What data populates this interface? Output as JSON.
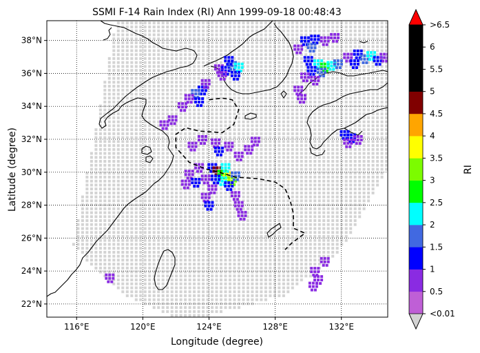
{
  "chart_data": {
    "type": "heatmap",
    "title": "SSMI F-14 Rain Index (RI) Ann 1999-09-18 00:48:43",
    "xlabel": "Longitude (degree)",
    "ylabel": "Latitude (degree)",
    "xlim": [
      114.2,
      134.8
    ],
    "ylim": [
      21.2,
      39.2
    ],
    "xticks": [
      116,
      120,
      124,
      128,
      132
    ],
    "xtick_labels": [
      "116°E",
      "120°E",
      "124°E",
      "128°E",
      "132°E"
    ],
    "yticks": [
      22,
      24,
      26,
      28,
      30,
      32,
      34,
      36,
      38
    ],
    "ytick_labels": [
      "22°N",
      "24°N",
      "26°N",
      "28°N",
      "30°N",
      "32°N",
      "34°N",
      "36°N",
      "38°N"
    ],
    "grid": true,
    "grid_style": "dotted",
    "colorbar": {
      "label": "RI",
      "tick_labels": [
        "<0.01",
        "0.5",
        "1",
        "1.5",
        "2",
        "2.5",
        "3",
        "3.5",
        "4",
        "4.5",
        "5",
        "5.5",
        "6",
        ">6.5"
      ],
      "under_color": "#d3d3d3",
      "over_color": "#ff0000",
      "colors": [
        "#bf5fd6",
        "#8a2be2",
        "#0000ff",
        "#4169e1",
        "#00ffff",
        "#00ff00",
        "#7cfc00",
        "#ffff00",
        "#ffa500",
        "#800000",
        "#000000",
        "#000000",
        "#000000"
      ]
    },
    "swath_color": "#d3d3d3",
    "swath_polygon": [
      [
        118.4,
        39.2
      ],
      [
        134.8,
        39.2
      ],
      [
        134.8,
        30.2
      ],
      [
        131.8,
        25.0
      ],
      [
        128.6,
        22.5
      ],
      [
        124.0,
        21.3
      ],
      [
        121.5,
        21.3
      ],
      [
        118.8,
        22.6
      ],
      [
        117.0,
        24.2
      ],
      [
        115.8,
        25.6
      ]
    ],
    "rain_cells": [
      {
        "lon": 124.6,
        "lat": 36.3,
        "ri": 0.5
      },
      {
        "lon": 125.0,
        "lat": 36.2,
        "ri": 1.0
      },
      {
        "lon": 125.4,
        "lat": 36.5,
        "ri": 1.5
      },
      {
        "lon": 125.8,
        "lat": 36.4,
        "ri": 2.0
      },
      {
        "lon": 125.2,
        "lat": 36.8,
        "ri": 1.0
      },
      {
        "lon": 124.8,
        "lat": 35.9,
        "ri": 0.5
      },
      {
        "lon": 125.6,
        "lat": 35.9,
        "ri": 1.0
      },
      {
        "lon": 123.6,
        "lat": 35.0,
        "ri": 1.0
      },
      {
        "lon": 123.2,
        "lat": 34.8,
        "ri": 1.5
      },
      {
        "lon": 122.8,
        "lat": 34.5,
        "ri": 0.5
      },
      {
        "lon": 123.4,
        "lat": 34.3,
        "ri": 1.0
      },
      {
        "lon": 122.4,
        "lat": 34.0,
        "ri": 0.5
      },
      {
        "lon": 123.8,
        "lat": 35.4,
        "ri": 0.5
      },
      {
        "lon": 121.8,
        "lat": 33.2,
        "ri": 0.5
      },
      {
        "lon": 121.3,
        "lat": 32.9,
        "ri": 0.5
      },
      {
        "lon": 124.2,
        "lat": 30.3,
        "ri": 1.0
      },
      {
        "lon": 124.5,
        "lat": 30.1,
        "ri": 4.5
      },
      {
        "lon": 124.8,
        "lat": 29.9,
        "ri": 2.5
      },
      {
        "lon": 125.1,
        "lat": 29.8,
        "ri": 3.5
      },
      {
        "lon": 125.4,
        "lat": 29.5,
        "ri": 3.0
      },
      {
        "lon": 125.0,
        "lat": 30.3,
        "ri": 2.0
      },
      {
        "lon": 125.6,
        "lat": 29.8,
        "ri": 1.5
      },
      {
        "lon": 124.8,
        "lat": 29.5,
        "ri": 2.0
      },
      {
        "lon": 124.4,
        "lat": 29.6,
        "ri": 1.0
      },
      {
        "lon": 125.2,
        "lat": 29.2,
        "ri": 1.0
      },
      {
        "lon": 123.4,
        "lat": 30.3,
        "ri": 0.5
      },
      {
        "lon": 122.8,
        "lat": 29.9,
        "ri": 0.5
      },
      {
        "lon": 123.8,
        "lat": 29.6,
        "ri": 0.5
      },
      {
        "lon": 123.2,
        "lat": 29.4,
        "ri": 1.0
      },
      {
        "lon": 122.6,
        "lat": 29.3,
        "ri": 0.5
      },
      {
        "lon": 124.2,
        "lat": 29.0,
        "ri": 0.5
      },
      {
        "lon": 123.8,
        "lat": 28.5,
        "ri": 0.5
      },
      {
        "lon": 124.0,
        "lat": 28.0,
        "ri": 1.0
      },
      {
        "lon": 125.6,
        "lat": 28.6,
        "ri": 0.5
      },
      {
        "lon": 125.8,
        "lat": 28.0,
        "ri": 0.5
      },
      {
        "lon": 126.0,
        "lat": 27.4,
        "ri": 0.5
      },
      {
        "lon": 123.6,
        "lat": 32.0,
        "ri": 0.5
      },
      {
        "lon": 124.4,
        "lat": 31.8,
        "ri": 0.5
      },
      {
        "lon": 125.2,
        "lat": 31.6,
        "ri": 0.5
      },
      {
        "lon": 124.6,
        "lat": 31.3,
        "ri": 1.0
      },
      {
        "lon": 125.8,
        "lat": 31.0,
        "ri": 0.5
      },
      {
        "lon": 123.0,
        "lat": 31.6,
        "ri": 0.5
      },
      {
        "lon": 126.8,
        "lat": 31.9,
        "ri": 0.5
      },
      {
        "lon": 126.4,
        "lat": 31.4,
        "ri": 0.5
      },
      {
        "lon": 129.4,
        "lat": 37.5,
        "ri": 0.5
      },
      {
        "lon": 129.8,
        "lat": 38.0,
        "ri": 1.0
      },
      {
        "lon": 130.4,
        "lat": 38.1,
        "ri": 1.0
      },
      {
        "lon": 131.0,
        "lat": 38.0,
        "ri": 0.5
      },
      {
        "lon": 131.6,
        "lat": 38.2,
        "ri": 0.5
      },
      {
        "lon": 130.2,
        "lat": 37.6,
        "ri": 1.5
      },
      {
        "lon": 130.0,
        "lat": 36.8,
        "ri": 1.0
      },
      {
        "lon": 130.6,
        "lat": 36.6,
        "ri": 2.0
      },
      {
        "lon": 131.0,
        "lat": 36.4,
        "ri": 2.5
      },
      {
        "lon": 131.4,
        "lat": 36.5,
        "ri": 2.0
      },
      {
        "lon": 131.8,
        "lat": 36.6,
        "ri": 1.5
      },
      {
        "lon": 130.2,
        "lat": 36.2,
        "ri": 1.0
      },
      {
        "lon": 130.8,
        "lat": 36.1,
        "ri": 1.5
      },
      {
        "lon": 129.8,
        "lat": 35.8,
        "ri": 0.5
      },
      {
        "lon": 130.4,
        "lat": 35.6,
        "ri": 0.5
      },
      {
        "lon": 132.4,
        "lat": 37.0,
        "ri": 0.5
      },
      {
        "lon": 133.0,
        "lat": 37.2,
        "ri": 1.0
      },
      {
        "lon": 133.4,
        "lat": 36.9,
        "ri": 1.5
      },
      {
        "lon": 133.8,
        "lat": 37.1,
        "ri": 2.0
      },
      {
        "lon": 134.2,
        "lat": 36.8,
        "ri": 1.0
      },
      {
        "lon": 134.6,
        "lat": 37.0,
        "ri": 0.5
      },
      {
        "lon": 132.8,
        "lat": 36.6,
        "ri": 1.0
      },
      {
        "lon": 129.4,
        "lat": 35.0,
        "ri": 0.5
      },
      {
        "lon": 129.6,
        "lat": 34.5,
        "ri": 0.5
      },
      {
        "lon": 132.2,
        "lat": 32.3,
        "ri": 1.0
      },
      {
        "lon": 132.6,
        "lat": 32.1,
        "ri": 1.0
      },
      {
        "lon": 133.0,
        "lat": 32.0,
        "ri": 0.5
      },
      {
        "lon": 132.4,
        "lat": 31.8,
        "ri": 0.5
      },
      {
        "lon": 130.4,
        "lat": 24.0,
        "ri": 0.5
      },
      {
        "lon": 130.6,
        "lat": 23.5,
        "ri": 0.5
      },
      {
        "lon": 130.3,
        "lat": 23.1,
        "ri": 0.5
      },
      {
        "lon": 131.0,
        "lat": 24.6,
        "ri": 0.5
      },
      {
        "lon": 118.0,
        "lat": 23.6,
        "ri": 0.5
      }
    ],
    "track": [
      [
        124.0,
        34.4
      ],
      [
        124.8,
        34.5
      ],
      [
        125.4,
        34.4
      ],
      [
        125.8,
        33.8
      ],
      [
        125.5,
        32.9
      ],
      [
        124.8,
        32.4
      ],
      [
        123.4,
        32.5
      ],
      [
        122.6,
        32.7
      ],
      [
        122.0,
        32.3
      ],
      [
        122.0,
        31.5
      ],
      [
        122.8,
        30.6
      ],
      [
        123.8,
        30.2
      ],
      [
        124.6,
        30.0
      ],
      [
        125.6,
        29.7
      ],
      [
        127.0,
        29.6
      ],
      [
        128.0,
        29.4
      ],
      [
        128.6,
        29.0
      ],
      [
        128.9,
        28.3
      ],
      [
        129.1,
        27.5
      ],
      [
        129.1,
        26.6
      ],
      [
        129.8,
        26.3
      ],
      [
        129.0,
        25.7
      ],
      [
        128.6,
        25.3
      ]
    ]
  }
}
